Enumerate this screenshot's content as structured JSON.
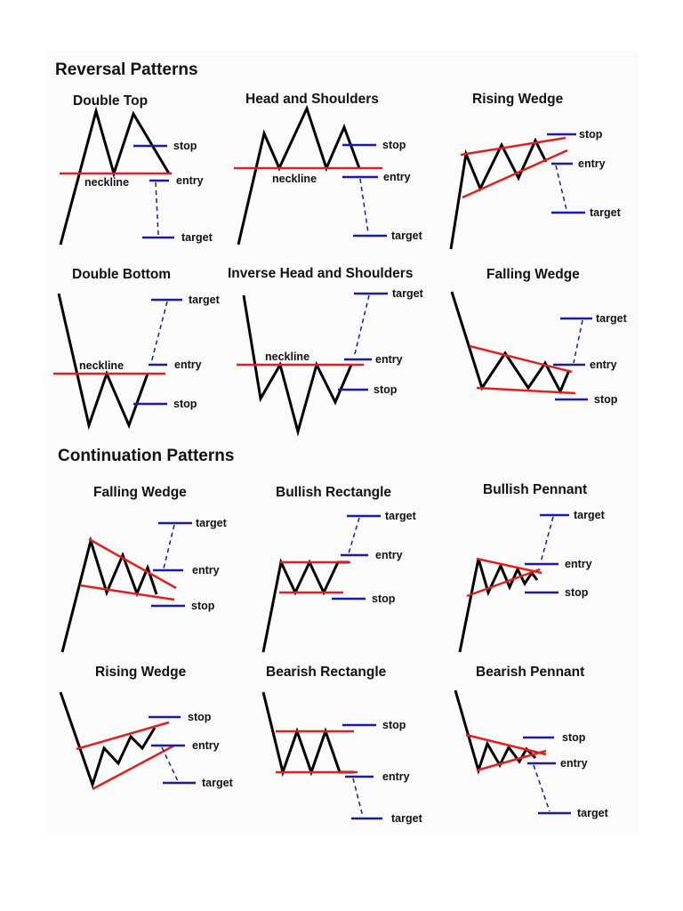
{
  "sections": {
    "reversal": "Reversal Patterns",
    "continuation": "Continuation Patterns"
  },
  "patterns": {
    "double_top": "Double Top",
    "head_shoulders": "Head and Shoulders",
    "rising_wedge_rev": "Rising Wedge",
    "double_bottom": "Double Bottom",
    "inverse_hs": "Inverse Head and Shoulders",
    "falling_wedge_rev": "Falling Wedge",
    "falling_wedge_cont": "Falling Wedge",
    "bullish_rectangle": "Bullish Rectangle",
    "bullish_pennant": "Bullish Pennant",
    "rising_wedge_cont": "Rising Wedge",
    "bearish_rectangle": "Bearish Rectangle",
    "bearish_pennant": "Bearish Pennant"
  },
  "labels": {
    "stop": "stop",
    "entry": "entry",
    "target": "target",
    "neckline": "neckline"
  },
  "colors": {
    "price": "#000000",
    "trendline": "#e02020",
    "level": "#1a1aa8"
  }
}
